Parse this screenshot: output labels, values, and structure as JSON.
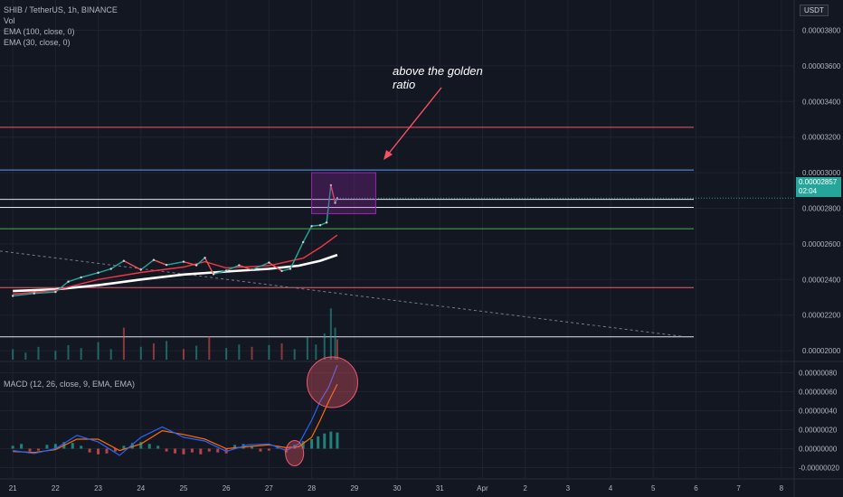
{
  "legend": {
    "symbol": "SHIB / TetherUS, 1h, BINANCE",
    "vol": "Vol",
    "ema100": "EMA (100, close, 0)",
    "ema30": "EMA (30, close, 0)",
    "macd": "MACD (12, 26, close, 9, EMA, EMA)"
  },
  "annotation": {
    "line1": "above the golden",
    "line2": "ratio"
  },
  "price_tag": {
    "price": "0.00002857",
    "countdown": "02:04"
  },
  "currency": "USDT",
  "colors": {
    "background": "#131722",
    "grid": "#1f2331",
    "up": "#26a69a",
    "down": "#ef5350",
    "fib_red": "#f05a6a",
    "fib_blue": "#5b9cf6",
    "fib_white": "#e0e3eb",
    "fib_green": "#4caf50",
    "ema100": "#ffffff",
    "ema30": "#f23645",
    "macd_line": "#2962ff",
    "signal_line": "#ff6d00",
    "highlight_box": "#9c27b0",
    "arrow": "#f7525f"
  },
  "chart_data": {
    "type": "line",
    "price_axis": {
      "ticks": [
        "0.00002000",
        "0.00002200",
        "0.00002400",
        "0.00002600",
        "0.00002800",
        "0.00003000",
        "0.00003200",
        "0.00003400",
        "0.00003600",
        "0.00003800"
      ],
      "values": [
        2e-05,
        2.2e-05,
        2.4e-05,
        2.6e-05,
        2.8e-05,
        3e-05,
        3.2e-05,
        3.4e-05,
        3.6e-05,
        3.8e-05
      ],
      "ylim": [
        1.95e-05,
        3.97e-05
      ]
    },
    "macd_axis": {
      "ticks": [
        "0.00000080",
        "0.00000060",
        "0.00000040",
        "0.00000020",
        "0.00000000",
        "-0.00000020"
      ],
      "values": [
        8e-07,
        6e-07,
        4e-07,
        2e-07,
        0.0,
        -2e-07
      ],
      "ylim": [
        -3e-07,
        9e-07
      ]
    },
    "x_axis": {
      "ticks": [
        "21",
        "22",
        "23",
        "24",
        "25",
        "26",
        "27",
        "28",
        "29",
        "30",
        "31",
        "Apr",
        "2",
        "3",
        "4",
        "5",
        "6",
        "7",
        "8"
      ],
      "day_index": [
        0,
        1,
        2,
        3,
        4,
        5,
        6,
        7,
        8,
        9,
        10,
        11,
        12,
        13,
        14,
        15,
        16,
        17,
        18
      ],
      "xlim": [
        -0.3,
        18.3
      ]
    },
    "horizontal_levels": [
      {
        "price": 3.255e-05,
        "color": "fib_red"
      },
      {
        "price": 3.015e-05,
        "color": "fib_blue"
      },
      {
        "price": 2.85e-05,
        "color": "fib_white"
      },
      {
        "price": 2.805e-05,
        "color": "fib_white"
      },
      {
        "price": 2.685e-05,
        "color": "fib_green"
      },
      {
        "price": 2.355e-05,
        "color": "fib_red"
      },
      {
        "price": 2.078e-05,
        "color": "fib_white"
      }
    ],
    "trendline": {
      "start": [
        -0.3,
        2.56e-05
      ],
      "end": [
        15.7,
        2.08e-05
      ]
    },
    "highlight_box": {
      "x": [
        7.0,
        8.5
      ],
      "price": [
        2.77e-05,
        3e-05
      ]
    },
    "close": [
      [
        0.0,
        2.308e-05
      ],
      [
        0.5,
        2.322e-05
      ],
      [
        1.0,
        2.33e-05
      ],
      [
        1.3,
        2.388e-05
      ],
      [
        1.6,
        2.412e-05
      ],
      [
        2.0,
        2.438e-05
      ],
      [
        2.3,
        2.46e-05
      ],
      [
        2.6,
        2.505e-05
      ],
      [
        3.0,
        2.455e-05
      ],
      [
        3.3,
        2.51e-05
      ],
      [
        3.6,
        2.482e-05
      ],
      [
        4.0,
        2.5e-05
      ],
      [
        4.3,
        2.48e-05
      ],
      [
        4.5,
        2.522e-05
      ],
      [
        4.7,
        2.43e-05
      ],
      [
        5.0,
        2.45e-05
      ],
      [
        5.3,
        2.48e-05
      ],
      [
        5.6,
        2.455e-05
      ],
      [
        6.0,
        2.495e-05
      ],
      [
        6.3,
        2.448e-05
      ],
      [
        6.5,
        2.46e-05
      ],
      [
        6.8,
        2.61e-05
      ],
      [
        7.0,
        2.7e-05
      ],
      [
        7.2,
        2.705e-05
      ],
      [
        7.35,
        2.72e-05
      ],
      [
        7.45,
        2.93e-05
      ],
      [
        7.55,
        2.83e-05
      ],
      [
        7.6,
        2.857e-05
      ]
    ],
    "ema100": [
      [
        0.0,
        2.335e-05
      ],
      [
        1.0,
        2.345e-05
      ],
      [
        2.0,
        2.368e-05
      ],
      [
        3.0,
        2.4e-05
      ],
      [
        4.0,
        2.428e-05
      ],
      [
        5.0,
        2.445e-05
      ],
      [
        6.0,
        2.46e-05
      ],
      [
        6.7,
        2.478e-05
      ],
      [
        7.2,
        2.505e-05
      ],
      [
        7.6,
        2.538e-05
      ]
    ],
    "ema30": [
      [
        0.0,
        2.318e-05
      ],
      [
        1.0,
        2.34e-05
      ],
      [
        2.0,
        2.4e-05
      ],
      [
        3.0,
        2.44e-05
      ],
      [
        4.0,
        2.47e-05
      ],
      [
        4.5,
        2.5e-05
      ],
      [
        5.0,
        2.465e-05
      ],
      [
        6.0,
        2.478e-05
      ],
      [
        6.8,
        2.52e-05
      ],
      [
        7.2,
        2.58e-05
      ],
      [
        7.6,
        2.65e-05
      ]
    ],
    "volume": {
      "ylim": [
        0,
        90
      ],
      "values": [
        [
          0.0,
          18
        ],
        [
          0.3,
          12
        ],
        [
          0.6,
          22
        ],
        [
          1.0,
          15
        ],
        [
          1.3,
          25
        ],
        [
          1.6,
          20
        ],
        [
          2.0,
          30
        ],
        [
          2.3,
          18
        ],
        [
          2.6,
          55
        ],
        [
          3.0,
          22
        ],
        [
          3.3,
          28
        ],
        [
          3.6,
          32
        ],
        [
          4.0,
          18
        ],
        [
          4.3,
          24
        ],
        [
          4.6,
          40
        ],
        [
          5.0,
          20
        ],
        [
          5.3,
          26
        ],
        [
          5.6,
          22
        ],
        [
          6.0,
          25
        ],
        [
          6.3,
          28
        ],
        [
          6.6,
          18
        ],
        [
          6.9,
          38
        ],
        [
          7.1,
          26
        ],
        [
          7.3,
          45
        ],
        [
          7.45,
          88
        ],
        [
          7.55,
          55
        ],
        [
          7.6,
          35
        ]
      ]
    },
    "macd": [
      [
        0.0,
        -2e-08
      ],
      [
        0.5,
        -5e-08
      ],
      [
        1.0,
        0.0
      ],
      [
        1.5,
        1.4e-07
      ],
      [
        2.0,
        7e-08
      ],
      [
        2.5,
        -7e-08
      ],
      [
        3.0,
        1.2e-07
      ],
      [
        3.5,
        2.3e-07
      ],
      [
        4.0,
        1.2e-07
      ],
      [
        4.5,
        8e-08
      ],
      [
        5.0,
        -3e-08
      ],
      [
        5.5,
        4e-08
      ],
      [
        6.0,
        5e-08
      ],
      [
        6.4,
        -2e-08
      ],
      [
        6.7,
        5e-08
      ],
      [
        7.0,
        3e-07
      ],
      [
        7.2,
        5e-07
      ],
      [
        7.4,
        6.5e-07
      ],
      [
        7.6,
        8.8e-07
      ]
    ],
    "signal": [
      [
        0.0,
        -3e-08
      ],
      [
        0.5,
        -4e-08
      ],
      [
        1.0,
        -1e-08
      ],
      [
        1.5,
        1e-07
      ],
      [
        2.0,
        1e-07
      ],
      [
        2.5,
        -2e-08
      ],
      [
        3.0,
        5e-08
      ],
      [
        3.5,
        1.9e-07
      ],
      [
        4.0,
        1.5e-07
      ],
      [
        4.5,
        1e-07
      ],
      [
        5.0,
        0.0
      ],
      [
        5.5,
        2e-08
      ],
      [
        6.0,
        4e-08
      ],
      [
        6.4,
        1e-08
      ],
      [
        6.7,
        2e-08
      ],
      [
        7.0,
        1.2e-07
      ],
      [
        7.2,
        3e-07
      ],
      [
        7.4,
        5e-07
      ],
      [
        7.6,
        6.8e-07
      ]
    ],
    "histogram": [
      [
        0.0,
        3e-08
      ],
      [
        0.2,
        5e-08
      ],
      [
        0.4,
        -3e-08
      ],
      [
        0.6,
        -2e-08
      ],
      [
        0.8,
        4e-08
      ],
      [
        1.0,
        5e-08
      ],
      [
        1.2,
        7e-08
      ],
      [
        1.4,
        6e-08
      ],
      [
        1.6,
        3e-08
      ],
      [
        1.8,
        -4e-08
      ],
      [
        2.0,
        -6e-08
      ],
      [
        2.2,
        -5e-08
      ],
      [
        2.4,
        -3e-08
      ],
      [
        2.6,
        3e-08
      ],
      [
        2.8,
        6e-08
      ],
      [
        3.0,
        7e-08
      ],
      [
        3.2,
        5e-08
      ],
      [
        3.4,
        3e-08
      ],
      [
        3.6,
        -3e-08
      ],
      [
        3.8,
        -5e-08
      ],
      [
        4.0,
        -6e-08
      ],
      [
        4.2,
        -4e-08
      ],
      [
        4.4,
        -6e-08
      ],
      [
        4.6,
        -3e-08
      ],
      [
        4.8,
        -4e-08
      ],
      [
        5.0,
        -5e-08
      ],
      [
        5.2,
        4e-08
      ],
      [
        5.4,
        5e-08
      ],
      [
        5.6,
        2e-08
      ],
      [
        5.8,
        -3e-08
      ],
      [
        6.0,
        -2e-08
      ],
      [
        6.2,
        3e-08
      ],
      [
        6.4,
        -4e-08
      ],
      [
        6.6,
        4e-08
      ],
      [
        6.8,
        8e-08
      ],
      [
        7.0,
        1e-07
      ],
      [
        7.15,
        1.3e-07
      ],
      [
        7.3,
        1.6e-07
      ],
      [
        7.45,
        1.8e-07
      ],
      [
        7.6,
        1.7e-07
      ]
    ],
    "macd_highlights": [
      {
        "x": 6.6,
        "value": -1e-08,
        "color": "fib_red"
      },
      {
        "x": 7.4,
        "value": 7e-07,
        "color": "fib_red"
      }
    ],
    "title": "",
    "xlabel": "",
    "ylabel": ""
  }
}
